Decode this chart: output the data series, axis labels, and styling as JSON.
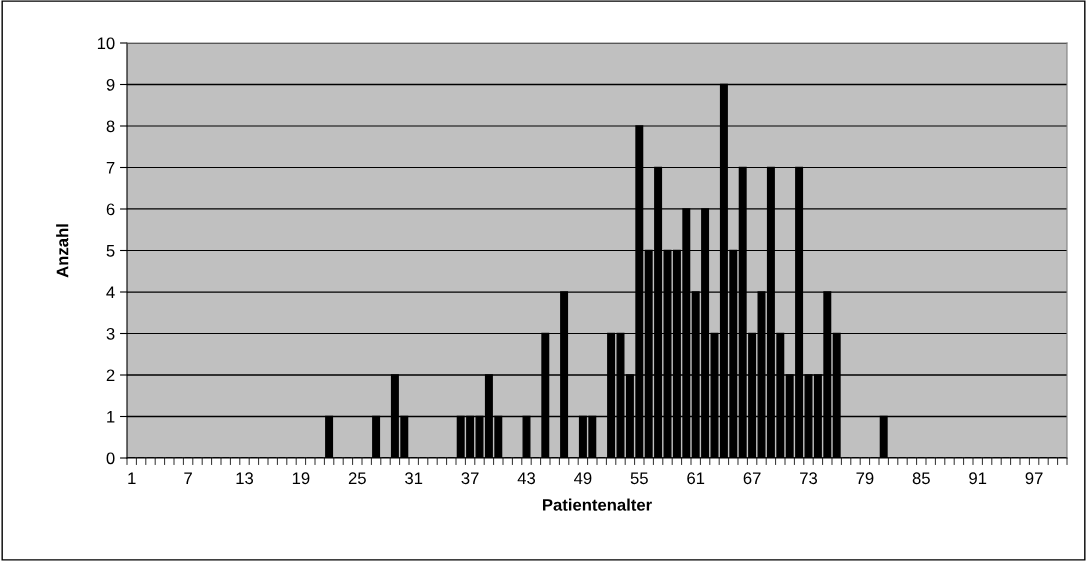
{
  "chart_data": {
    "type": "bar",
    "xlabel": "Patientenalter",
    "ylabel": "Anzahl",
    "categories": [
      "1",
      null,
      null,
      null,
      null,
      null,
      "7",
      null,
      null,
      null,
      null,
      null,
      "13",
      null,
      null,
      null,
      null,
      null,
      "19",
      null,
      null,
      null,
      null,
      null,
      "25",
      null,
      null,
      null,
      null,
      null,
      "31",
      null,
      null,
      null,
      null,
      null,
      "37",
      null,
      null,
      null,
      null,
      null,
      "43",
      null,
      null,
      null,
      null,
      null,
      "49",
      null,
      null,
      null,
      null,
      null,
      "55",
      null,
      null,
      null,
      null,
      null,
      "61",
      null,
      null,
      null,
      null,
      null,
      "67",
      null,
      null,
      null,
      null,
      null,
      "73",
      null,
      null,
      null,
      null,
      null,
      "79",
      null,
      null,
      null,
      null,
      null,
      "85",
      null,
      null,
      null,
      null,
      null,
      "91",
      null,
      null,
      null,
      null,
      null,
      "97",
      null,
      null,
      null
    ],
    "values": [
      0,
      0,
      0,
      0,
      0,
      0,
      0,
      0,
      0,
      0,
      0,
      0,
      0,
      0,
      0,
      0,
      0,
      0,
      0,
      0,
      0,
      1,
      0,
      0,
      0,
      0,
      1,
      0,
      2,
      1,
      0,
      0,
      0,
      0,
      0,
      1,
      1,
      1,
      2,
      1,
      0,
      0,
      1,
      0,
      3,
      0,
      4,
      0,
      1,
      1,
      0,
      3,
      3,
      2,
      8,
      5,
      7,
      5,
      5,
      6,
      4,
      6,
      3,
      9,
      5,
      7,
      3,
      4,
      7,
      3,
      2,
      7,
      2,
      2,
      4,
      3,
      0,
      0,
      0,
      0,
      1,
      0,
      0,
      0,
      0,
      0,
      0,
      0,
      0,
      0,
      0,
      0,
      0,
      0,
      0,
      0,
      0,
      0,
      0,
      0
    ],
    "color": "#000000",
    "ylim": [
      0,
      10
    ],
    "yticks": [
      0,
      1,
      2,
      3,
      4,
      5,
      6,
      7,
      8,
      9,
      10
    ],
    "grid": "y",
    "legend": false
  }
}
